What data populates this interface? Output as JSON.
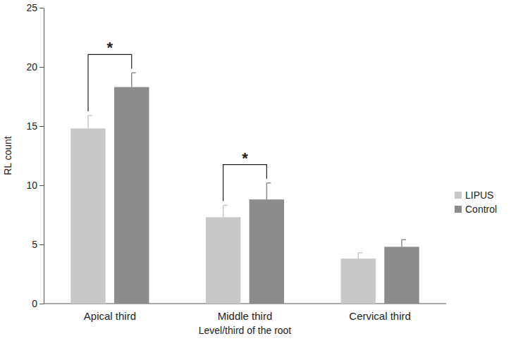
{
  "chart_data": {
    "type": "bar",
    "x_label": "Level/third of the root",
    "y_label": "RL count",
    "categories": [
      "Apical third",
      "Middle third",
      "Cervical third"
    ],
    "series": [
      {
        "name": "LIPUS",
        "color": "#c8c8c8",
        "values": [
          14.8,
          7.3,
          3.8
        ],
        "errors": [
          1.1,
          1.0,
          0.5
        ]
      },
      {
        "name": "Control",
        "color": "#8c8c8c",
        "values": [
          18.3,
          8.8,
          4.8
        ],
        "errors": [
          1.2,
          1.4,
          0.6
        ]
      }
    ],
    "ylim": [
      0,
      25
    ],
    "yticks": [
      0,
      5,
      10,
      15,
      20,
      25
    ],
    "grid": false,
    "legend": "right",
    "annotations": [
      {
        "text": "*",
        "category": "Apical third"
      },
      {
        "text": "*",
        "category": "Middle third"
      }
    ]
  }
}
